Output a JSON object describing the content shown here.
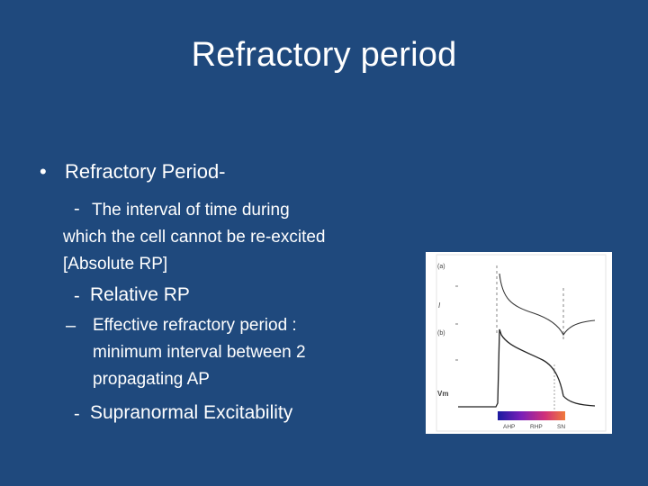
{
  "slide": {
    "title": "Refractory period",
    "bullet_marker": "•",
    "bullet1": "Refractory Period-",
    "dash": "-",
    "en_dash": "–",
    "line1": "The interval of time during",
    "line2": "which the cell cannot be re-excited",
    "line3": "[Absolute RP]",
    "relative": "Relative RP",
    "effective1": "Effective refractory period :",
    "effective2": "minimum interval between 2",
    "effective3": "propagating AP",
    "supranormal": "Supranormal Excitability"
  },
  "figure": {
    "panel_a": "(a)",
    "panel_b": "(b)",
    "label_i": "I",
    "label_vm": "Vm",
    "bar_labels": [
      "AHP",
      "RHP",
      "SN"
    ],
    "bar_colors": [
      "#1a1aa0",
      "#7a1fb8",
      "#d0307a",
      "#f07a3a"
    ]
  }
}
